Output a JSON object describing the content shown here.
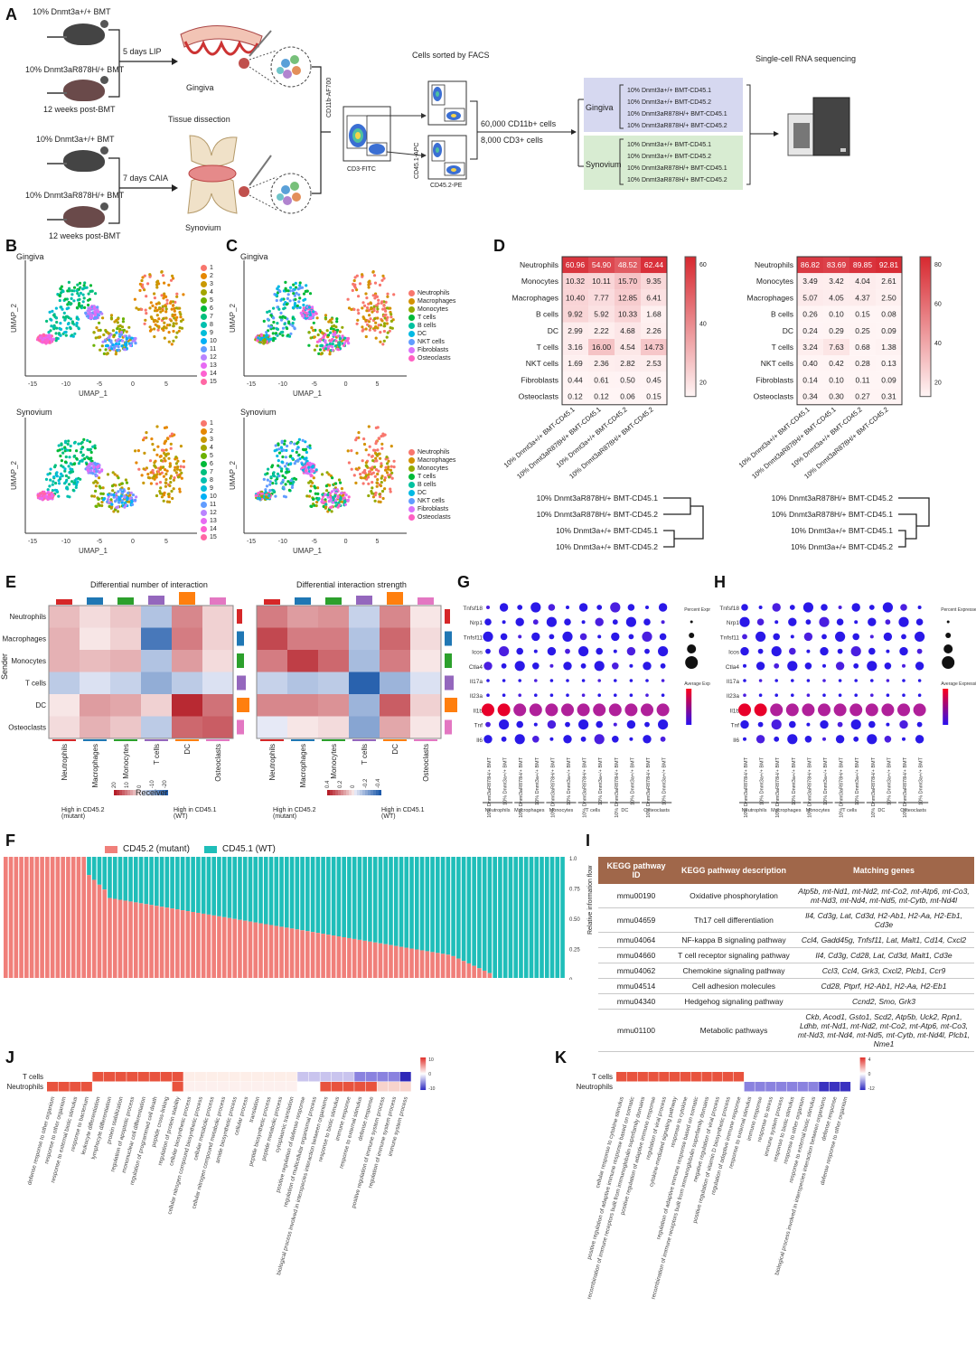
{
  "panels": {
    "A": "A",
    "B": "B",
    "C": "C",
    "D": "D",
    "E": "E",
    "F": "F",
    "G": "G",
    "H": "H",
    "I": "I",
    "J": "J",
    "K": "K"
  },
  "panel_a": {
    "mouse1": "10% Dnmt3a+/+ BMT",
    "mouse2": "10% Dnmt3aR878H/+ BMT",
    "weeks1": "12 weeks post-BMT",
    "lip": "5 days LIP",
    "gingiva": "Gingiva",
    "tissue_dissection": "Tissue dissection",
    "mouse3": "10% Dnmt3a+/+ BMT",
    "mouse4": "10% Dnmt3aR878H/+ BMT",
    "weeks2": "12 weeks post-BMT",
    "caia": "7 days CAIA",
    "synovium": "Synovium",
    "facs_title": "Cells sorted by FACS",
    "cd11b_axis": "CD11b-AF700",
    "cd3_axis": "CD3-FITC",
    "cd451_axis": "CD45.1-APC",
    "cd452_axis": "CD45.2-PE",
    "cells1": "60,000 CD11b+ cells",
    "cells2": "8,000 CD3+ cells",
    "scrna_title": "Single-cell RNA sequencing",
    "group_gingiva": "Gingiva",
    "group_synovium": "Synovium",
    "samples": [
      "10% Dnmt3a+/+ BMT-CD45.1",
      "10% Dnmt3a+/+ BMT-CD45.2",
      "10% Dnmt3aR878H/+ BMT-CD45.1",
      "10% Dnmt3aR878H/+ BMT-CD45.2"
    ]
  },
  "umap": {
    "b_top_title": "Gingiva",
    "b_bottom_title": "Synovium",
    "c_top_title": "Gingiva",
    "c_bottom_title": "Synovium",
    "xlabel": "UMAP_1",
    "ylabel": "UMAP_2",
    "xticks": [
      "-15",
      "-10",
      "-5",
      "0",
      "5"
    ],
    "clusters": [
      "1",
      "2",
      "3",
      "4",
      "5",
      "6",
      "7",
      "8",
      "9",
      "10",
      "11",
      "12",
      "13",
      "14",
      "15"
    ],
    "cluster_colors": [
      "#f8766d",
      "#e58700",
      "#c99800",
      "#a3a500",
      "#6bb100",
      "#00ba38",
      "#00bf7d",
      "#00c0af",
      "#00bcd8",
      "#00b0f6",
      "#619cff",
      "#b983ff",
      "#e76bf3",
      "#fd61d1",
      "#ff67a4"
    ],
    "celltypes": [
      "Neutrophils",
      "Macrophages",
      "Monocytes",
      "T cells",
      "B cells",
      "DC",
      "NKT cells",
      "Fibroblasts",
      "Osteoclasts"
    ],
    "celltype_colors": [
      "#f8766d",
      "#d39200",
      "#93aa00",
      "#00ba38",
      "#00c19f",
      "#00b9e3",
      "#619cff",
      "#db72fb",
      "#ff61c3"
    ]
  },
  "chart_data": [
    {
      "type": "heatmap",
      "title": "",
      "rows": [
        "Neutrophils",
        "Monocytes",
        "Macrophages",
        "B cells",
        "DC",
        "T cells",
        "NKT cells",
        "Fibroblasts",
        "Osteoclasts"
      ],
      "columns": [
        "10% Dnmt3a+/+ BMT-CD45.1",
        "10% Dnmt3aR878H/+ BMT-CD45.1",
        "10% Dnmt3a+/+ BMT-CD45.2",
        "10% Dnmt3aR878H/+ BMT-CD45.2"
      ],
      "values": [
        [
          60.96,
          54.9,
          48.52,
          62.44
        ],
        [
          10.32,
          10.11,
          15.7,
          9.35
        ],
        [
          10.4,
          7.77,
          12.85,
          6.41
        ],
        [
          9.92,
          5.92,
          10.33,
          1.68
        ],
        [
          2.99,
          2.22,
          4.68,
          2.26
        ],
        [
          3.16,
          16.0,
          4.54,
          14.73
        ],
        [
          1.69,
          2.36,
          2.82,
          2.53
        ],
        [
          0.44,
          0.61,
          0.5,
          0.45
        ],
        [
          0.12,
          0.12,
          0.06,
          0.15
        ]
      ],
      "colorbar_ticks": [
        "60",
        "40",
        "20"
      ],
      "dendrogram_labels": [
        "10% Dnmt3aR878H/+ BMT-CD45.1",
        "10% Dnmt3aR878H/+ BMT-CD45.2",
        "10% Dnmt3a+/+ BMT-CD45.1",
        "10% Dnmt3a+/+ BMT-CD45.2"
      ]
    },
    {
      "type": "heatmap",
      "title": "",
      "rows": [
        "Neutrophils",
        "Monocytes",
        "Macrophages",
        "B cells",
        "DC",
        "T cells",
        "NKT cells",
        "Fibroblasts",
        "Osteoclasts"
      ],
      "columns": [
        "10% Dnmt3a+/+ BMT-CD45.1",
        "10% Dnmt3aR878H/+ BMT-CD45.1",
        "10% Dnmt3a+/+ BMT-CD45.2",
        "10% Dnmt3aR878H/+ BMT-CD45.2"
      ],
      "values": [
        [
          86.82,
          83.69,
          89.85,
          92.81
        ],
        [
          3.49,
          3.42,
          4.04,
          2.61
        ],
        [
          5.07,
          4.05,
          4.37,
          2.5
        ],
        [
          0.26,
          0.1,
          0.15,
          0.08
        ],
        [
          0.24,
          0.29,
          0.25,
          0.09
        ],
        [
          3.24,
          7.63,
          0.68,
          1.38
        ],
        [
          0.4,
          0.42,
          0.28,
          0.13
        ],
        [
          0.14,
          0.1,
          0.11,
          0.09
        ],
        [
          0.34,
          0.3,
          0.27,
          0.31
        ]
      ],
      "colorbar_ticks": [
        "80",
        "60",
        "40",
        "20"
      ],
      "dendrogram_labels": [
        "10% Dnmt3aR878H/+ BMT-CD45.2",
        "10% Dnmt3aR878H/+ BMT-CD45.1",
        "10% Dnmt3a+/+ BMT-CD45.1",
        "10% Dnmt3a+/+ BMT-CD45.2"
      ]
    }
  ],
  "panel_e": {
    "title_left": "Differential number of interaction",
    "title_right": "Differential interaction strength",
    "ylabel": "Sender",
    "xlabel": "Receiver",
    "cells": [
      "Neutrophils",
      "Macrophages",
      "Monocytes",
      "T cells",
      "DC",
      "Osteoclasts"
    ],
    "legend_left_high": "High in CD45.2 (mutant)",
    "legend_right_high": "High in CD45.1 (WT)",
    "legend_ticks_left": [
      "20",
      "10",
      "0",
      "-10",
      "-20"
    ],
    "legend_ticks_right": [
      "0.4",
      "0.2",
      "0",
      "-0.2",
      "-0.4"
    ],
    "left_matrix": [
      [
        0.25,
        0.1,
        0.2,
        -0.3,
        0.5,
        0.15
      ],
      [
        0.3,
        0.05,
        0.15,
        -0.8,
        0.55,
        0.15
      ],
      [
        0.3,
        0.25,
        0.3,
        -0.3,
        0.4,
        0.1
      ],
      [
        -0.25,
        -0.1,
        -0.2,
        -0.45,
        -0.25,
        -0.1
      ],
      [
        0.05,
        0.4,
        0.35,
        0.15,
        0.95,
        0.6
      ],
      [
        0.1,
        0.3,
        0.2,
        -0.25,
        0.65,
        0.7
      ]
    ],
    "right_matrix": [
      [
        0.55,
        0.4,
        0.45,
        -0.2,
        0.5,
        0.05
      ],
      [
        0.8,
        0.55,
        0.55,
        -0.3,
        0.65,
        0.1
      ],
      [
        0.55,
        0.85,
        0.65,
        -0.35,
        0.55,
        0.05
      ],
      [
        -0.2,
        -0.3,
        -0.25,
        -0.95,
        -0.4,
        -0.1
      ],
      [
        0.5,
        0.5,
        0.45,
        -0.4,
        0.7,
        0.15
      ],
      [
        -0.05,
        0.05,
        0.1,
        -0.5,
        0.35,
        0.05
      ]
    ],
    "bar_colors": [
      "#d62728",
      "#1f77b4",
      "#2ca02c",
      "#9467bd",
      "#ff7f0e",
      "#e377c2"
    ]
  },
  "panel_gh": {
    "genes": [
      "Tnfsf18",
      "Nrp1",
      "Tnfsf11",
      "Icos",
      "Ctla4",
      "Il17a",
      "Il23a",
      "Il1b",
      "Tnf",
      "Il6"
    ],
    "legend_size": "Percent Expressed",
    "legend_color": "Average Expression",
    "groups_g": [
      "Neutrophils",
      "Macrophages",
      "Monocytes",
      "T cells",
      "DC",
      "Osteoclasts"
    ],
    "groups_h": [
      "Neutrophils",
      "Macrophages",
      "Monocytes",
      "T cells",
      "DC",
      "Osteoclasts"
    ],
    "xlabels_g": [
      "10% Dnmt3aR878H/+ BMT",
      "10% Dnmt3a+/+ BMT"
    ],
    "xlabels_h": [
      "10% Dnmt3aR878H/+ BMT",
      "10% Dnmt3a+/+ BMT"
    ]
  },
  "panel_f": {
    "legend_mutant": "CD45.2 (mutant)",
    "legend_wt": "CD45.1 (WT)",
    "ylabel": "Relative information flow",
    "yticks": [
      "1.0",
      "0.75",
      "0.50",
      "0.25",
      "0"
    ],
    "mutant_color": "#f07f7a",
    "wt_color": "#1fbeb9"
  },
  "panel_i": {
    "headers": [
      "KEGG pathway ID",
      "KEGG pathway description",
      "Matching genes"
    ],
    "rows": [
      [
        "mmu00190",
        "Oxidative phosphorylation",
        "Atp5b, mt-Nd1, mt-Nd2, mt-Co2, mt-Atp6, mt-Co3, mt-Nd3, mt-Nd4, mt-Nd5, mt-Cytb, mt-Nd4l"
      ],
      [
        "mmu04659",
        "Th17 cell differentiation",
        "Il4, Cd3g, Lat, Cd3d, H2-Ab1, H2-Aa, H2-Eb1, Cd3e"
      ],
      [
        "mmu04064",
        "NF-kappa B signaling pathway",
        "Ccl4, Gadd45g, Tnfsf11, Lat, Malt1, Cd14, Cxcl2"
      ],
      [
        "mmu04660",
        "T cell receptor signaling pathway",
        "Il4, Cd3g, Cd28, Lat, Cd3d, Malt1, Cd3e"
      ],
      [
        "mmu04062",
        "Chemokine signaling pathway",
        "Ccl3, Ccl4, Grk3, Cxcl2, Plcb1, Ccr9"
      ],
      [
        "mmu04514",
        "Cell adhesion molecules",
        "Cd28, Ptprf, H2-Ab1, H2-Aa, H2-Eb1"
      ],
      [
        "mmu04340",
        "Hedgehog signaling pathway",
        "Ccnd2, Smo, Grk3"
      ],
      [
        "mmu01100",
        "Metabolic pathways",
        "Ckb, Acod1, Gsto1, Scd2, Atp5b, Uck2, Rpn1, Ldhb, mt-Nd1, mt-Nd2, mt-Co2, mt-Atp6, mt-Co3, mt-Nd3, mt-Nd4, mt-Nd5, mt-Cytb, mt-Nd4l, Plcb1, Nme1"
      ]
    ]
  },
  "panel_j": {
    "rows": [
      "T cells",
      "Neutrophils"
    ],
    "terms": [
      "defense response to other organism",
      "response to other organism",
      "response to external biotic stimulus",
      "response to bacterium",
      "leukocyte differentiation",
      "lymphocyte differentiation",
      "protein stabilization",
      "regulation of apoptotic process",
      "mononuclear cell differentiation",
      "regulation of programmed cell death",
      "peptide cross-linking",
      "regulation of protein stability",
      "cellular biosynthetic process",
      "cellular nitrogen compound biosynthetic process",
      "cellular metabolic process",
      "cellular nitrogen compound metabolic process",
      "amide biosynthetic process",
      "cellular process",
      "translation",
      "peptide biosynthetic process",
      "peptide metabolic process",
      "cytoplasmic translation",
      "positive regulation of defense response",
      "regulation of multicellular organismal process",
      "biological process involved in interspecies interaction between organisms",
      "response to biotic stimulus",
      "immune response",
      "response to external stimulus",
      "defense response",
      "positive regulation of immune system process",
      "regulation of immune system process",
      "immune system process"
    ],
    "colorbar_ticks": [
      "10",
      "0",
      "-10"
    ]
  },
  "panel_k": {
    "rows": [
      "T cells",
      "Neutrophils"
    ],
    "terms": [
      "cellular response to cytokine stimulus",
      "positive regulation of adaptive immune response based on somatic",
      "recombination of immune receptors built from immunoglobulin superfamily domains",
      "positive regulation of adaptive immune response",
      "regulation of viral process",
      "cytokine-mediated signaling pathway",
      "response to cytokine",
      "regulation of adaptive immune response based on somatic",
      "recombination of immune receptors built from immunoglobulin superfamily domains",
      "negative regulation of viral process",
      "positive regulation of vitamin D biosynthetic process",
      "regulation of adaptive immune response",
      "response to external stimulus",
      "immune response",
      "response to stress",
      "immune system process",
      "response to biotic stimulus",
      "response to other organism",
      "response to external biotic stimulus",
      "biological process involved in interspecies interaction between organisms",
      "defense response",
      "defense response to other organism"
    ],
    "colorbar_ticks": [
      "4",
      "0",
      "-12"
    ]
  }
}
